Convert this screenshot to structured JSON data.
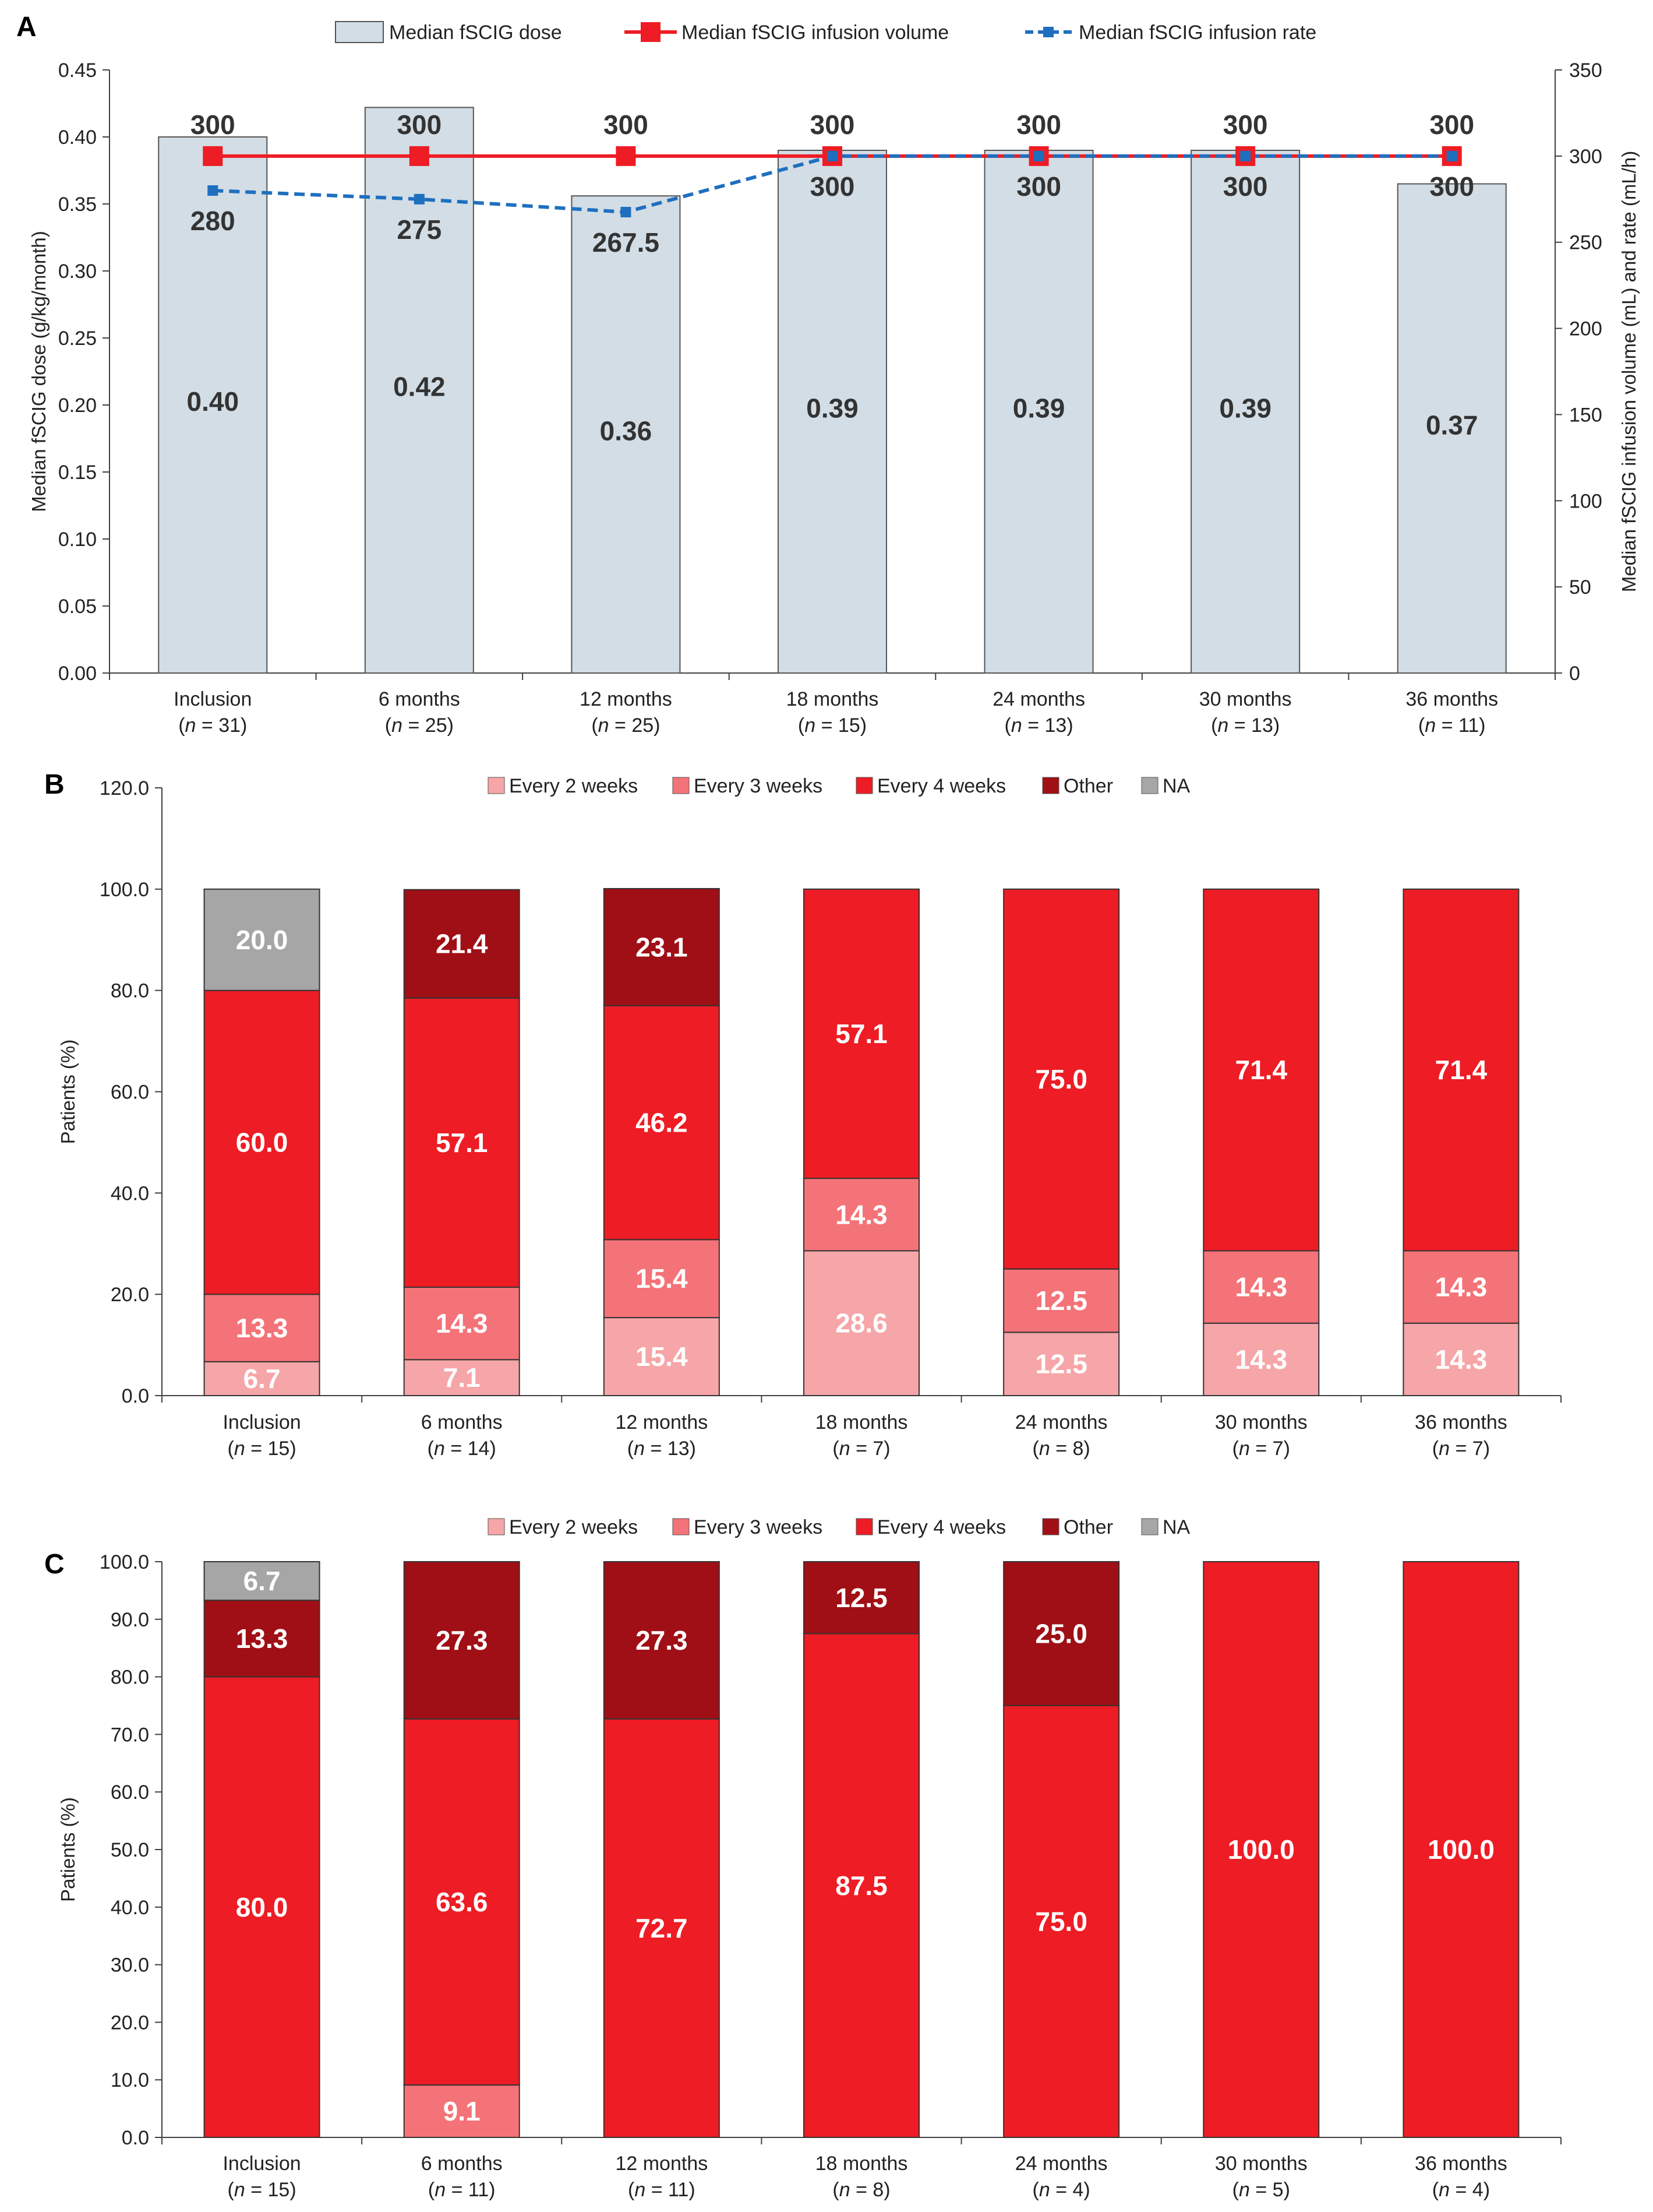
{
  "colors": {
    "bar_fill": "#d2dde5",
    "bar_stroke": "#555555",
    "volume_line": "#ee1c24",
    "volume_marker": "#ee1c24",
    "rate_line": "#1f6fbf",
    "every2": "#f6a6a8",
    "every3": "#f47378",
    "every4": "#ee1c24",
    "other": "#a00f15",
    "na": "#a6a6a6",
    "axis": "#404040",
    "text": "#222222"
  },
  "chart_data": [
    {
      "panel_label": "A",
      "type": "bar",
      "legend_placement": "top",
      "categories": [
        "Inclusion",
        "6 months",
        "12 months",
        "18 months",
        "24 months",
        "30 months",
        "36 months"
      ],
      "category_n": [
        "31",
        "25",
        "25",
        "15",
        "13",
        "13",
        "11"
      ],
      "ylabel": "Median fSCIG dose (g/kg/month)",
      "y2label": "Median fSCIG infusion volume (mL) and rate (mL/h)",
      "ylim": [
        0,
        0.45
      ],
      "y2lim": [
        0,
        350
      ],
      "yticks": [
        "0.00",
        "0.05",
        "0.10",
        "0.15",
        "0.20",
        "0.25",
        "0.30",
        "0.35",
        "0.40",
        "0.45"
      ],
      "y2ticks": [
        "0",
        "50",
        "100",
        "150",
        "200",
        "250",
        "300",
        "350"
      ],
      "grid": false,
      "series": [
        {
          "name": "Median fSCIG dose",
          "type": "bar",
          "axis": "left",
          "values": [
            0.4,
            0.422,
            0.356,
            0.39,
            0.39,
            0.39,
            0.365
          ],
          "labels": [
            "0.40",
            "0.42",
            "0.36",
            "0.39",
            "0.39",
            "0.39",
            "0.37"
          ]
        },
        {
          "name": "Median fSCIG infusion volume",
          "type": "line",
          "axis": "right",
          "values": [
            300,
            300,
            300,
            300,
            300,
            300,
            300
          ],
          "labels": [
            "300",
            "300",
            "300",
            "300",
            "300",
            "300",
            "300"
          ]
        },
        {
          "name": "Median fSCIG infusion rate",
          "type": "line",
          "axis": "right",
          "values": [
            280,
            275,
            267.5,
            300,
            300,
            300,
            300
          ],
          "labels": [
            "280",
            "275",
            "267.5",
            "300",
            "300",
            "300",
            "300"
          ]
        }
      ]
    },
    {
      "panel_label": "B",
      "type": "bar",
      "stacked": true,
      "legend_placement": "top",
      "categories": [
        "Inclusion",
        "6 months",
        "12 months",
        "18 months",
        "24 months",
        "30 months",
        "36 months"
      ],
      "category_n": [
        "15",
        "14",
        "13",
        "7",
        "8",
        "7",
        "7"
      ],
      "ylabel": "Patients (%)",
      "ylim": [
        0,
        120
      ],
      "yticks": [
        "0.0",
        "20.0",
        "40.0",
        "60.0",
        "80.0",
        "100.0",
        "120.0"
      ],
      "grid": false,
      "series": [
        {
          "name": "Every 2 weeks",
          "values": [
            6.7,
            7.1,
            15.4,
            28.6,
            12.5,
            14.3,
            14.3
          ],
          "labels": [
            "6.7",
            "7.1",
            "15.4",
            "28.6",
            "12.5",
            "14.3",
            "14.3"
          ]
        },
        {
          "name": "Every 3 weeks",
          "values": [
            13.3,
            14.3,
            15.4,
            14.3,
            12.5,
            14.3,
            14.3
          ],
          "labels": [
            "13.3",
            "14.3",
            "15.4",
            "14.3",
            "12.5",
            "14.3",
            "14.3"
          ]
        },
        {
          "name": "Every 4 weeks",
          "values": [
            60.0,
            57.1,
            46.2,
            57.1,
            75.0,
            71.4,
            71.4
          ],
          "labels": [
            "60.0",
            "57.1",
            "46.2",
            "57.1",
            "75.0",
            "71.4",
            "71.4"
          ]
        },
        {
          "name": "Other",
          "values": [
            0,
            21.4,
            23.1,
            0,
            0,
            0,
            0
          ],
          "labels": [
            "",
            "21.4",
            "23.1",
            "",
            "",
            "",
            ""
          ]
        },
        {
          "name": "NA",
          "values": [
            20.0,
            0,
            0,
            0,
            0,
            0,
            0
          ],
          "labels": [
            "20.0",
            "",
            "",
            "",
            "",
            "",
            ""
          ]
        }
      ]
    },
    {
      "panel_label": "C",
      "type": "bar",
      "stacked": true,
      "legend_placement": "top",
      "categories": [
        "Inclusion",
        "6 months",
        "12 months",
        "18 months",
        "24 months",
        "30 months",
        "36 months"
      ],
      "category_n": [
        "15",
        "11",
        "11",
        "8",
        "4",
        "5",
        "4"
      ],
      "ylabel": "Patients (%)",
      "ylim": [
        0,
        100
      ],
      "yticks": [
        "0.0",
        "10.0",
        "20.0",
        "30.0",
        "40.0",
        "50.0",
        "60.0",
        "70.0",
        "80.0",
        "90.0",
        "100.0"
      ],
      "grid": false,
      "series": [
        {
          "name": "Every 2 weeks",
          "values": [
            0,
            0,
            0,
            0,
            0,
            0,
            0
          ],
          "labels": [
            "",
            "",
            "",
            "",
            "",
            "",
            ""
          ]
        },
        {
          "name": "Every 3 weeks",
          "values": [
            0,
            9.1,
            0,
            0,
            0,
            0,
            0
          ],
          "labels": [
            "",
            "9.1",
            "",
            "",
            "",
            "",
            ""
          ]
        },
        {
          "name": "Every 4 weeks",
          "values": [
            80.0,
            63.6,
            72.7,
            87.5,
            75.0,
            100.0,
            100.0
          ],
          "labels": [
            "80.0",
            "63.6",
            "72.7",
            "87.5",
            "75.0",
            "100.0",
            "100.0"
          ]
        },
        {
          "name": "Other",
          "values": [
            13.3,
            27.3,
            27.3,
            12.5,
            25.0,
            0,
            0
          ],
          "labels": [
            "13.3",
            "27.3",
            "27.3",
            "12.5",
            "25.0",
            "",
            ""
          ]
        },
        {
          "name": "NA",
          "values": [
            6.7,
            0,
            0,
            0,
            0,
            0,
            0
          ],
          "labels": [
            "6.7",
            "",
            "",
            "",
            "",
            "",
            ""
          ]
        }
      ]
    }
  ]
}
